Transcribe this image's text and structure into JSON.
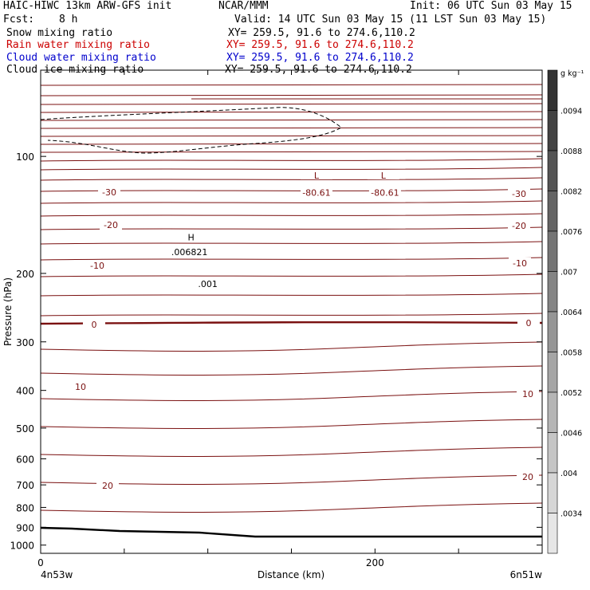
{
  "header": {
    "title_left": "HAIC-HIWC 13km ARW-GFS init",
    "center": "NCAR/MMM",
    "init": "Init: 06 UTC Sun 03 May 15",
    "fcst_label": "Fcst:",
    "fcst_value": "8 h",
    "valid": "Valid: 14 UTC Sun 03 May 15 (11 LST Sun 03 May 15)"
  },
  "fields": [
    {
      "name": "Snow mixing ratio",
      "xy": "XY= 259.5, 91.6 to 274.6,110.2",
      "color": "#000000"
    },
    {
      "name": "Rain water mixing ratio",
      "xy": "XY= 259.5, 91.6 to 274.6,110.2",
      "color": "#cc0000"
    },
    {
      "name": "Cloud water mixing ratio",
      "xy": "XY= 259.5, 91.6 to 274.6,110.2",
      "color": "#0000cc"
    },
    {
      "name": "Cloud ice mixing ratio",
      "xy": "XY= 259.5, 91.6 to 274.6,110.2",
      "color": "#000000"
    }
  ],
  "chart_data": {
    "type": "contour",
    "xlabel": "Distance (km)",
    "ylabel": "Pressure (hPa)",
    "x_range": [
      0,
      300
    ],
    "x_ticks": [
      0,
      200
    ],
    "y_range": [
      1050,
      60
    ],
    "y_ticks": [
      100,
      200,
      300,
      400,
      500,
      600,
      700,
      800,
      900,
      1000
    ],
    "x_endpoint_labels": [
      "4n53w",
      "6n51w"
    ],
    "colorbar": {
      "unit": "g kg⁻¹",
      "labels": [
        ".0094",
        ".0088",
        ".0082",
        ".0076",
        ".007",
        ".0064",
        ".0058",
        ".0052",
        ".0046",
        ".004",
        ".0034"
      ]
    },
    "temperature_contours": [
      {
        "value": -30,
        "label": "-30"
      },
      {
        "value": -20,
        "label": "-20"
      },
      {
        "value": -10,
        "label": "-10"
      },
      {
        "value": 0,
        "label": "0"
      },
      {
        "value": 10,
        "label": "10"
      },
      {
        "value": 20,
        "label": "20"
      }
    ],
    "annotations": [
      {
        "text": "L",
        "x": 165,
        "p": 113
      },
      {
        "text": "-80.61",
        "x": 165,
        "p": 125
      },
      {
        "text": "L",
        "x": 205,
        "p": 113
      },
      {
        "text": "-80.61",
        "x": 206,
        "p": 125
      },
      {
        "text": "H",
        "x": 90,
        "p": 163
      },
      {
        "text": ".006821",
        "x": 89,
        "p": 178
      },
      {
        "text": ".001",
        "x": 100,
        "p": 215
      }
    ]
  }
}
